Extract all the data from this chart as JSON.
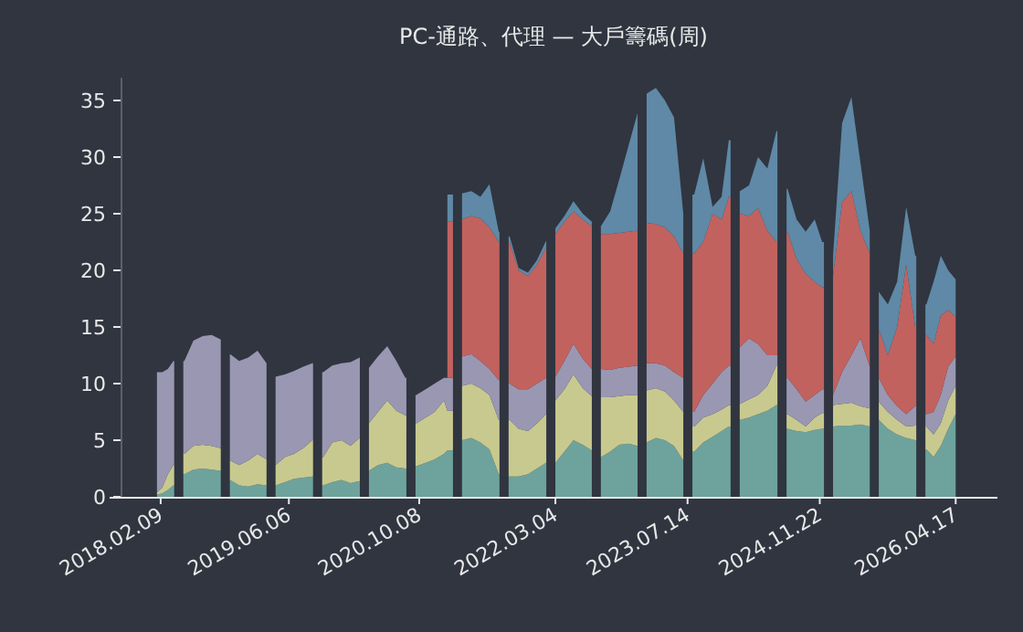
{
  "chart_data": {
    "type": "area",
    "stacked": true,
    "title": "PC-通路、代理 — 大戶籌碼(周)",
    "x": [
      "2018-01-26",
      "2018-02-15",
      "2018-03-08",
      "2018-03-29",
      "2018-04-18",
      "2018-05-09",
      "2018-06-12",
      "2018-07-17",
      "2018-08-20",
      "2018-09-23",
      "2018-10-10",
      "2018-10-28",
      "2018-12-01",
      "2019-01-04",
      "2019-02-08",
      "2019-03-14",
      "2019-03-31",
      "2019-04-17",
      "2019-05-22",
      "2019-06-25",
      "2019-07-30",
      "2019-09-02",
      "2019-09-22",
      "2019-10-13",
      "2019-11-16",
      "2019-12-21",
      "2020-01-24",
      "2020-02-27",
      "2020-03-16",
      "2020-04-02",
      "2020-05-06",
      "2020-06-10",
      "2020-07-14",
      "2020-08-17",
      "2020-09-07",
      "2020-09-27",
      "2020-11-01",
      "2020-12-05",
      "2021-01-09",
      "2021-01-22",
      "2021-02-12",
      "2021-03-01",
      "2021-03-18",
      "2021-04-22",
      "2021-05-26",
      "2021-06-29",
      "2021-08-03",
      "2021-08-23",
      "2021-09-13",
      "2021-10-17",
      "2021-11-21",
      "2021-12-25",
      "2022-01-28",
      "2022-02-15",
      "2022-03-04",
      "2022-04-07",
      "2022-05-11",
      "2022-06-15",
      "2022-07-19",
      "2022-08-05",
      "2022-08-22",
      "2022-09-26",
      "2022-10-30",
      "2022-12-04",
      "2023-01-07",
      "2023-01-24",
      "2023-02-10",
      "2023-03-17",
      "2023-04-20",
      "2023-05-24",
      "2023-06-28",
      "2023-07-15",
      "2023-08-08",
      "2023-09-11",
      "2023-10-16",
      "2023-11-19",
      "2023-12-16",
      "2024-01-09",
      "2024-01-27",
      "2024-03-01",
      "2024-04-04",
      "2024-05-09",
      "2024-06-12",
      "2024-07-03",
      "2024-07-24",
      "2024-08-27",
      "2024-09-30",
      "2024-11-03",
      "2024-12-01",
      "2024-12-25",
      "2025-01-11",
      "2025-02-14",
      "2025-03-21",
      "2025-04-24",
      "2025-05-29",
      "2025-06-15",
      "2025-07-02",
      "2025-08-05",
      "2025-09-09",
      "2025-10-13",
      "2025-11-16",
      "2025-12-07",
      "2025-12-28",
      "2026-01-24",
      "2026-02-20",
      "2026-03-20",
      "2026-04-17"
    ],
    "series": [
      {
        "color": "#6da39c",
        "values": [
          0.2,
          0.3,
          0.6,
          1.0,
          null,
          2.0,
          2.4,
          2.5,
          2.4,
          2.3,
          null,
          1.5,
          1.0,
          0.9,
          1.1,
          1.0,
          null,
          1.0,
          1.3,
          1.6,
          1.7,
          1.8,
          null,
          1.0,
          1.3,
          1.5,
          1.2,
          1.4,
          null,
          2.3,
          2.8,
          3.0,
          2.6,
          2.5,
          null,
          2.7,
          3.0,
          3.3,
          3.8,
          4.1,
          4.1,
          null,
          5.0,
          5.2,
          4.8,
          4.2,
          2.0,
          null,
          1.8,
          1.8,
          2.0,
          2.5,
          3.0,
          null,
          3.0,
          4.0,
          5.0,
          4.6,
          4.1,
          null,
          3.5,
          4.0,
          4.6,
          4.7,
          4.5,
          null,
          4.8,
          5.2,
          5.0,
          4.5,
          3.2,
          null,
          4.0,
          4.8,
          5.3,
          5.8,
          6.2,
          null,
          6.8,
          7.0,
          7.3,
          7.6,
          8.1,
          null,
          6.0,
          5.8,
          5.7,
          5.9,
          6.0,
          null,
          6.2,
          6.3,
          6.3,
          6.4,
          6.2,
          null,
          6.8,
          6.0,
          5.5,
          5.2,
          5.0,
          null,
          4.2,
          3.5,
          4.5,
          6.0,
          7.3
        ]
      },
      {
        "color": "#c8c98f",
        "values": [
          0.2,
          0.5,
          1.4,
          1.8,
          null,
          1.8,
          2.1,
          2.1,
          2.1,
          2.0,
          null,
          1.7,
          1.8,
          2.3,
          2.7,
          2.3,
          null,
          1.8,
          2.2,
          2.2,
          2.6,
          3.2,
          null,
          2.5,
          3.5,
          3.5,
          3.3,
          3.8,
          null,
          4.2,
          4.7,
          5.5,
          5.0,
          4.7,
          null,
          3.8,
          4.0,
          4.2,
          4.7,
          3.5,
          3.5,
          null,
          4.8,
          4.8,
          4.8,
          4.8,
          4.8,
          null,
          5.0,
          4.2,
          3.8,
          4.0,
          4.3,
          null,
          5.5,
          5.5,
          5.8,
          5.0,
          4.8,
          null,
          5.3,
          4.8,
          4.3,
          4.3,
          4.5,
          null,
          4.6,
          4.4,
          4.3,
          4.0,
          4.3,
          null,
          2.2,
          2.2,
          2.0,
          1.9,
          1.9,
          null,
          1.4,
          1.6,
          1.7,
          2.2,
          3.5,
          null,
          1.3,
          1.0,
          0.5,
          1.1,
          1.4,
          null,
          1.9,
          1.9,
          2.0,
          1.6,
          1.6,
          null,
          1.6,
          1.5,
          1.3,
          1.0,
          1.3,
          null,
          2.0,
          2.0,
          2.0,
          2.5,
          2.5
        ]
      },
      {
        "color": "#9a97b2",
        "values": [
          10.6,
          10.2,
          9.3,
          9.2,
          null,
          8.2,
          9.3,
          9.6,
          9.8,
          9.6,
          null,
          9.4,
          9.2,
          9.1,
          9.1,
          8.5,
          null,
          7.8,
          7.3,
          7.3,
          7.2,
          6.8,
          null,
          7.5,
          6.8,
          6.8,
          7.4,
          7.1,
          null,
          4.9,
          4.9,
          4.8,
          4.4,
          3.3,
          null,
          2.5,
          2.5,
          2.5,
          2.0,
          2.9,
          2.9,
          null,
          2.6,
          2.6,
          2.4,
          2.3,
          3.5,
          null,
          3.2,
          3.5,
          3.7,
          3.5,
          3.2,
          null,
          2.1,
          2.5,
          2.7,
          2.6,
          2.4,
          null,
          2.5,
          2.4,
          2.5,
          2.5,
          2.6,
          null,
          2.4,
          2.2,
          2.3,
          2.5,
          3.0,
          null,
          1.3,
          2.0,
          2.7,
          3.3,
          3.5,
          null,
          5.0,
          5.4,
          4.5,
          2.7,
          0.9,
          null,
          3.2,
          2.7,
          2.2,
          2.0,
          2.1,
          null,
          0.9,
          2.8,
          4.2,
          6.0,
          3.7,
          null,
          2.1,
          1.5,
          1.2,
          1.1,
          1.7,
          null,
          1.1,
          2.0,
          2.5,
          3.0,
          2.6
        ]
      },
      {
        "color": "#c2625f",
        "values": [
          null,
          null,
          null,
          null,
          null,
          null,
          null,
          null,
          null,
          null,
          null,
          null,
          null,
          null,
          null,
          null,
          null,
          null,
          null,
          null,
          null,
          null,
          null,
          null,
          null,
          null,
          null,
          null,
          null,
          null,
          null,
          null,
          null,
          null,
          null,
          null,
          null,
          null,
          null,
          13.8,
          13.8,
          null,
          12.1,
          12.2,
          12.6,
          12.5,
          12.2,
          null,
          12.5,
          10.5,
          10.0,
          10.5,
          11.5,
          null,
          12.6,
          12.3,
          11.7,
          12.3,
          12.6,
          null,
          11.9,
          12.0,
          11.9,
          11.9,
          11.9,
          null,
          12.4,
          12.3,
          12.2,
          12.0,
          11.0,
          null,
          14.0,
          13.5,
          15.0,
          13.5,
          14.9,
          null,
          11.8,
          10.8,
          12.0,
          11.0,
          10.0,
          null,
          12.9,
          11.5,
          11.3,
          10.0,
          9.0,
          null,
          10.5,
          15.0,
          14.5,
          9.5,
          10.0,
          null,
          4.3,
          3.5,
          7.0,
          13.2,
          7.0,
          null,
          7.0,
          6.0,
          7.0,
          5.0,
          3.5
        ]
      },
      {
        "color": "#5f89a6",
        "values": [
          null,
          null,
          null,
          null,
          null,
          null,
          null,
          null,
          null,
          null,
          null,
          null,
          null,
          null,
          null,
          null,
          null,
          null,
          null,
          null,
          null,
          null,
          null,
          null,
          null,
          null,
          null,
          null,
          null,
          null,
          null,
          null,
          null,
          null,
          null,
          null,
          null,
          null,
          null,
          2.4,
          2.4,
          null,
          2.3,
          2.2,
          1.9,
          3.8,
          0.9,
          null,
          0.5,
          0.2,
          0.3,
          0.4,
          0.6,
          null,
          0.5,
          0.5,
          0.9,
          0.5,
          0.4,
          null,
          0.7,
          2.0,
          4.7,
          7.6,
          10.4,
          null,
          11.4,
          12.0,
          11.2,
          10.5,
          3.5,
          null,
          5.2,
          7.4,
          0.6,
          2.0,
          5.0,
          null,
          2.0,
          2.7,
          4.5,
          5.5,
          9.8,
          null,
          3.8,
          3.5,
          3.7,
          5.5,
          4.0,
          null,
          1.8,
          7.0,
          8.3,
          6.0,
          2.0,
          null,
          3.3,
          4.5,
          4.0,
          5.1,
          6.3,
          null,
          2.7,
          5.5,
          5.3,
          3.5,
          3.3
        ]
      }
    ],
    "xlim": [
      "2017-08-01",
      "2026-09-21"
    ],
    "xticks": [
      {
        "value": "2018-02-09",
        "label": "2018.02.09"
      },
      {
        "value": "2019-06-06",
        "label": "2019.06.06"
      },
      {
        "value": "2020-10-08",
        "label": "2020.10.08"
      },
      {
        "value": "2022-03-04",
        "label": "2022.03.04"
      },
      {
        "value": "2023-07-14",
        "label": "2023.07.14"
      },
      {
        "value": "2024-11-22",
        "label": "2024.11.22"
      },
      {
        "value": "2026-04-17",
        "label": "2026.04.17"
      }
    ],
    "ylim": [
      0,
      37
    ],
    "yticks": [
      0,
      5,
      10,
      15,
      20,
      25,
      30,
      35
    ]
  }
}
